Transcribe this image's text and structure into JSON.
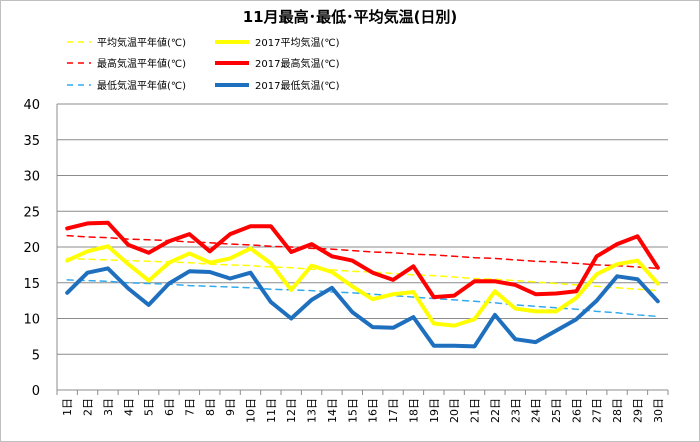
{
  "chart_data": {
    "type": "line",
    "title": "11月最高･最低･平均気温(日別)",
    "xlabel": "",
    "ylabel": "",
    "ylim": [
      0,
      40
    ],
    "yticks": [
      0,
      5,
      10,
      15,
      20,
      25,
      30,
      35,
      40
    ],
    "grid": true,
    "legend_position": "top",
    "day_suffix": "日",
    "categories": [
      "1",
      "2",
      "3",
      "4",
      "5",
      "6",
      "7",
      "8",
      "9",
      "10",
      "11",
      "12",
      "13",
      "14",
      "15",
      "16",
      "17",
      "18",
      "19",
      "20",
      "21",
      "22",
      "23",
      "24",
      "25",
      "26",
      "27",
      "28",
      "29",
      "30"
    ],
    "series": [
      {
        "name": "平均気温平年値(℃)",
        "color": "#ffff00",
        "style": "dashed",
        "values": [
          18.4,
          18.3,
          18.2,
          18.1,
          18.0,
          17.9,
          17.8,
          17.6,
          17.5,
          17.4,
          17.2,
          17.1,
          16.9,
          16.8,
          16.6,
          16.5,
          16.3,
          16.1,
          16.0,
          15.8,
          15.6,
          15.5,
          15.3,
          15.1,
          14.9,
          14.7,
          14.5,
          14.3,
          14.1,
          13.9
        ]
      },
      {
        "name": "2017平均気温(℃)",
        "color": "#ffff00",
        "style": "solid",
        "values": [
          18.1,
          19.4,
          20.1,
          17.6,
          15.3,
          17.8,
          19.1,
          17.8,
          18.4,
          19.8,
          17.7,
          14.0,
          17.4,
          16.5,
          14.5,
          12.7,
          13.4,
          13.7,
          9.3,
          9.0,
          9.9,
          13.8,
          11.4,
          11.0,
          11.0,
          12.9,
          16.2,
          17.6,
          18.1,
          14.9
        ]
      },
      {
        "name": "最高気温平年値(℃)",
        "color": "#ff0000",
        "style": "dashed",
        "values": [
          21.6,
          21.4,
          21.3,
          21.1,
          21.0,
          20.9,
          20.7,
          20.6,
          20.4,
          20.3,
          20.1,
          20.0,
          19.8,
          19.7,
          19.5,
          19.3,
          19.2,
          19.0,
          18.9,
          18.7,
          18.5,
          18.4,
          18.2,
          18.0,
          17.9,
          17.7,
          17.5,
          17.4,
          17.2,
          17.0
        ]
      },
      {
        "name": "2017最高気温(℃)",
        "color": "#ff0000",
        "style": "solid",
        "values": [
          22.6,
          23.3,
          23.4,
          20.3,
          19.2,
          20.8,
          21.8,
          19.4,
          21.8,
          22.9,
          22.9,
          19.3,
          20.4,
          18.7,
          18.1,
          16.4,
          15.4,
          17.3,
          13.0,
          13.2,
          15.2,
          15.2,
          14.7,
          13.4,
          13.5,
          13.8,
          18.7,
          20.4,
          21.5,
          17.1
        ]
      },
      {
        "name": "最低気温平年値(℃)",
        "color": "#33aaee",
        "style": "dashed",
        "values": [
          15.4,
          15.3,
          15.2,
          15.0,
          14.9,
          14.8,
          14.6,
          14.5,
          14.4,
          14.3,
          14.1,
          14.0,
          13.9,
          13.7,
          13.6,
          13.4,
          13.2,
          13.0,
          12.8,
          12.6,
          12.4,
          12.2,
          11.9,
          11.7,
          11.5,
          11.3,
          11.0,
          10.8,
          10.5,
          10.3
        ]
      },
      {
        "name": "2017最低気温(℃)",
        "color": "#1f6fbf",
        "style": "solid",
        "values": [
          13.6,
          16.4,
          17.0,
          14.2,
          11.9,
          14.9,
          16.6,
          16.5,
          15.6,
          16.4,
          12.3,
          10.0,
          12.6,
          14.3,
          10.9,
          8.8,
          8.7,
          10.2,
          6.2,
          6.2,
          6.1,
          10.5,
          7.1,
          6.7,
          8.3,
          9.9,
          12.5,
          15.9,
          15.5,
          12.4
        ]
      }
    ]
  }
}
